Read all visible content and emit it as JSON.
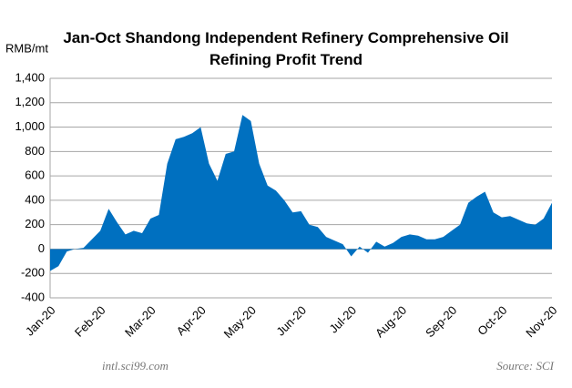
{
  "chart_data": {
    "type": "area",
    "title": "Jan-Oct Shandong Independent Refinery Comprehensive Oil Refining Profit Trend",
    "y_label": "RMB/mt",
    "annotations": [
      "intl.sci99.com",
      "Source: SCI"
    ],
    "categories": [
      "Jan-20",
      null,
      null,
      null,
      null,
      null,
      "Feb-20",
      null,
      null,
      null,
      null,
      null,
      "Mar-20",
      null,
      null,
      null,
      null,
      null,
      "Apr-20",
      null,
      null,
      null,
      null,
      null,
      "May-20",
      null,
      null,
      null,
      null,
      null,
      "Jun-20",
      null,
      null,
      null,
      null,
      null,
      "Jul-20",
      null,
      null,
      null,
      null,
      null,
      "Aug-20",
      null,
      null,
      null,
      null,
      null,
      "Sep-20",
      null,
      null,
      null,
      null,
      null,
      "Oct-20",
      null,
      null,
      null,
      null,
      null,
      "Nov-20"
    ],
    "values": [
      -180,
      -140,
      -20,
      0,
      10,
      80,
      150,
      330,
      220,
      120,
      150,
      130,
      250,
      280,
      700,
      900,
      920,
      950,
      1000,
      700,
      560,
      780,
      800,
      1100,
      1050,
      700,
      520,
      480,
      400,
      300,
      310,
      200,
      180,
      100,
      70,
      40,
      -60,
      20,
      -30,
      60,
      20,
      50,
      100,
      120,
      110,
      80,
      80,
      100,
      150,
      200,
      380,
      430,
      470,
      300,
      260,
      270,
      240,
      210,
      200,
      250,
      380
    ],
    "color": "#0070c0",
    "ylim": [
      -400,
      1400
    ],
    "yticks": [
      -400,
      -200,
      0,
      200,
      400,
      600,
      800,
      {
        "value": 1000,
        "label": "1,000"
      },
      {
        "value": 1200,
        "label": "1,200"
      },
      {
        "value": 1400,
        "label": "1,400"
      }
    ],
    "grid": true
  }
}
